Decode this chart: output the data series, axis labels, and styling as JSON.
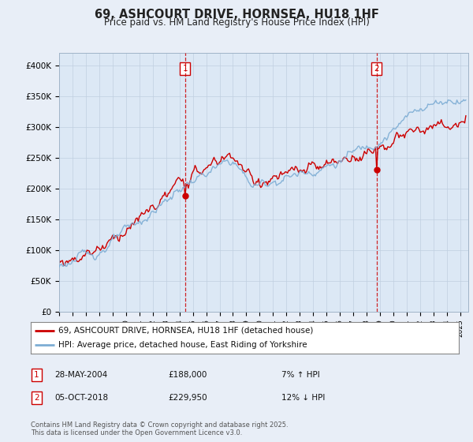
{
  "title_line1": "69, ASHCOURT DRIVE, HORNSEA, HU18 1HF",
  "title_line2": "Price paid vs. HM Land Registry's House Price Index (HPI)",
  "ylim": [
    0,
    420000
  ],
  "yticks": [
    0,
    50000,
    100000,
    150000,
    200000,
    250000,
    300000,
    350000,
    400000
  ],
  "ytick_labels": [
    "£0",
    "£50K",
    "£100K",
    "£150K",
    "£200K",
    "£250K",
    "£300K",
    "£350K",
    "£400K"
  ],
  "hpi_color": "#7dadd4",
  "price_color": "#cc0000",
  "dashed_color": "#cc0000",
  "marker1_label": "28-MAY-2004",
  "marker1_price": "£188,000",
  "marker1_pct": "7% ↑ HPI",
  "marker2_label": "05-OCT-2018",
  "marker2_price": "£229,950",
  "marker2_pct": "12% ↓ HPI",
  "legend_label1": "69, ASHCOURT DRIVE, HORNSEA, HU18 1HF (detached house)",
  "legend_label2": "HPI: Average price, detached house, East Riding of Yorkshire",
  "footer": "Contains HM Land Registry data © Crown copyright and database right 2025.\nThis data is licensed under the Open Government Licence v3.0.",
  "bg_color": "#e8eef7",
  "plot_bg_color": "#dce8f5",
  "grid_color": "#c0cfe0"
}
